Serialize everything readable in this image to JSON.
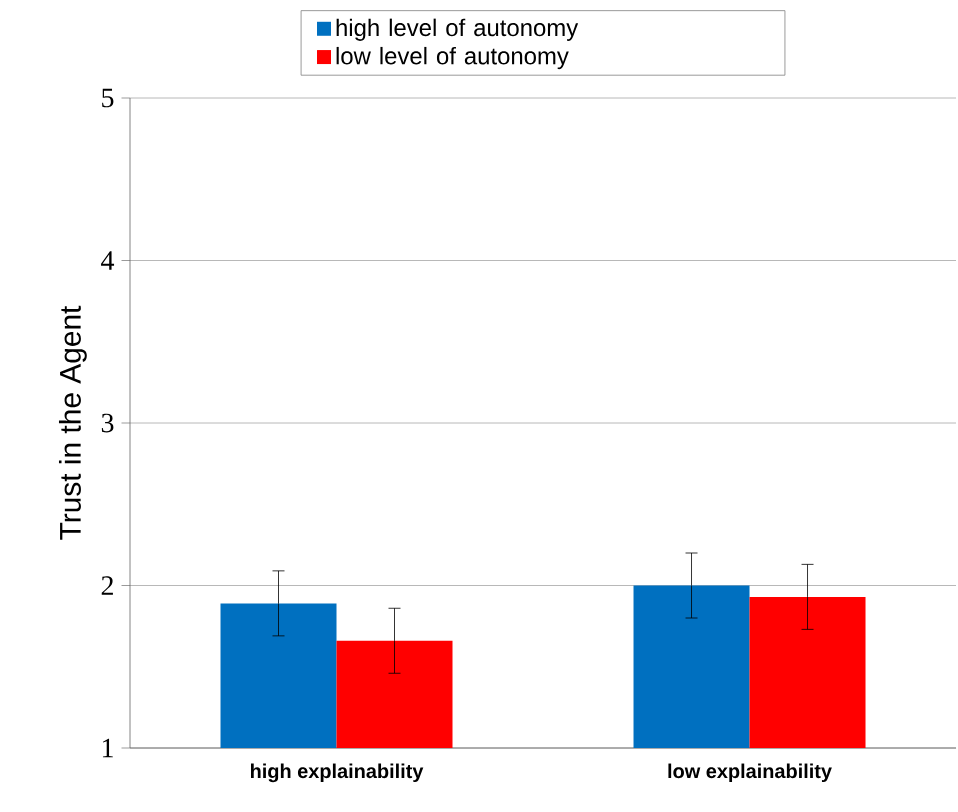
{
  "chart_data": {
    "type": "bar",
    "ylabel": "Trust in the Agent",
    "categories": [
      "high explainability",
      "low explainability"
    ],
    "series": [
      {
        "name": "high level of autonomy",
        "color": "#0070c0",
        "values": [
          1.89,
          2.0
        ],
        "errors": [
          0.2,
          0.2
        ]
      },
      {
        "name": "low level of autonomy",
        "color": "#ff0000",
        "values": [
          1.66,
          1.93
        ],
        "errors": [
          0.2,
          0.2
        ]
      }
    ],
    "ylim": [
      1,
      5
    ],
    "yticks": [
      1,
      2,
      3,
      4,
      5
    ],
    "grid": "y",
    "legend": "top"
  }
}
